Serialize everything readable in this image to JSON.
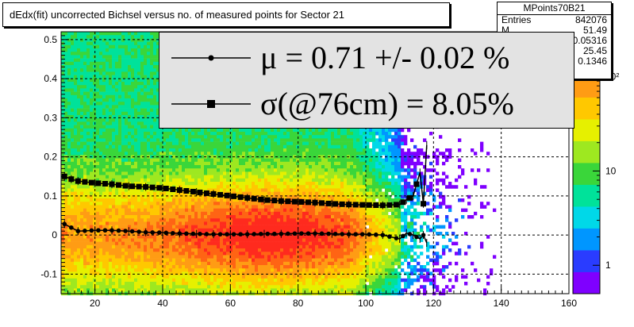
{
  "title": "dEdx(fit) uncorrected Bichsel versus no. of measured points for Sector 21",
  "stats": {
    "name": "MPoints70B21",
    "rows": [
      {
        "label": "Entries",
        "value": "842076"
      },
      {
        "label": "M",
        "value": "51.49"
      },
      {
        "label": "",
        "value": "0.05316"
      },
      {
        "label": "",
        "value": "25.45"
      },
      {
        "label": "",
        "value": "0.1346"
      }
    ]
  },
  "legend": {
    "entries": [
      {
        "symbol": "circle",
        "text": "μ  =  0.71 +/-  0.02 %"
      },
      {
        "symbol": "square",
        "text": "σ(@76cm) =  8.05%"
      }
    ]
  },
  "colors": {
    "frame": "#000000",
    "legend_bg": "#e3e3e3",
    "palette": [
      "#7f00ff",
      "#2a3cff",
      "#0096ff",
      "#00d8e8",
      "#00e29a",
      "#3ad63a",
      "#9ee820",
      "#e6f000",
      "#ffc800",
      "#ff9c14",
      "#ff6414",
      "#ff2a1e"
    ]
  },
  "chart_data": {
    "type": "heatmap",
    "xlim": [
      10,
      160
    ],
    "ylim": [
      -0.15,
      0.52
    ],
    "x_ticks": [
      20,
      40,
      60,
      80,
      100,
      120,
      140,
      160
    ],
    "y_ticks": [
      -0.1,
      0,
      0.1,
      0.2,
      0.3,
      0.4,
      0.5
    ],
    "y_tick_labels": [
      "-0.1",
      "0",
      "0.1",
      "0.2",
      "0.3",
      "0.4",
      "0.5"
    ],
    "colorbar": {
      "scale": "log",
      "range": [
        0.5,
        300
      ],
      "ticks": [
        1,
        10,
        100
      ],
      "tick_labels": [
        "1",
        "10",
        "10²"
      ]
    },
    "grid": true,
    "series": [
      {
        "name": "mean",
        "marker": "circle",
        "x": [
          11,
          15,
          20,
          25,
          30,
          35,
          40,
          45,
          50,
          55,
          60,
          65,
          70,
          75,
          80,
          85,
          90,
          95,
          100,
          105,
          110,
          112,
          114,
          116,
          117,
          118
        ],
        "y": [
          0.028,
          0.01,
          0.012,
          0.012,
          0.01,
          0.007,
          0.006,
          0.004,
          0.003,
          0.002,
          0.002,
          0.002,
          0.003,
          0.003,
          0.004,
          0.004,
          0.003,
          0.002,
          0.002,
          0.0,
          -0.01,
          0.005,
          0.0,
          -0.01,
          0.0,
          -0.02
        ]
      },
      {
        "name": "sigma",
        "marker": "square",
        "x": [
          11,
          13,
          15,
          20,
          25,
          30,
          35,
          40,
          45,
          50,
          55,
          60,
          65,
          70,
          75,
          80,
          85,
          90,
          95,
          100,
          105,
          110,
          112,
          114,
          116,
          117,
          118
        ],
        "y": [
          0.15,
          0.143,
          0.138,
          0.133,
          0.13,
          0.125,
          0.123,
          0.12,
          0.115,
          0.11,
          0.105,
          0.1,
          0.095,
          0.09,
          0.087,
          0.085,
          0.083,
          0.08,
          0.078,
          0.077,
          0.076,
          0.078,
          0.09,
          0.1,
          0.16,
          0.08,
          0.23
        ]
      }
    ]
  }
}
